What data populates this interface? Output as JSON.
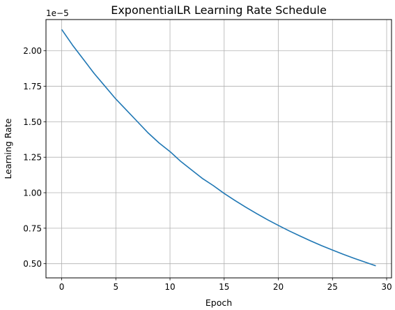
{
  "chart_data": {
    "type": "line",
    "title": "ExponentialLR Learning Rate Schedule",
    "xlabel": "Epoch",
    "ylabel": "Learning Rate",
    "y_offset_label": "1e−5",
    "xlim": [
      -1.45,
      30.45
    ],
    "ylim": [
      0.4,
      2.22
    ],
    "y_scale_multiplier": 1e-05,
    "grid": true,
    "x_ticks": [
      0,
      5,
      10,
      15,
      20,
      25,
      30
    ],
    "x_tick_labels": [
      "0",
      "5",
      "10",
      "15",
      "20",
      "25",
      "30"
    ],
    "y_ticks": [
      0.5,
      0.75,
      1.0,
      1.25,
      1.5,
      1.75,
      2.0
    ],
    "y_tick_labels": [
      "0.50",
      "0.75",
      "1.00",
      "1.25",
      "1.50",
      "1.75",
      "2.00"
    ],
    "series": [
      {
        "color": "#1f77b4",
        "x": [
          0,
          1,
          2,
          3,
          4,
          5,
          6,
          7,
          8,
          9,
          10,
          11,
          12,
          13,
          14,
          15,
          16,
          17,
          18,
          19,
          20,
          21,
          22,
          23,
          24,
          25,
          26,
          27,
          28,
          29
        ],
        "values": [
          2.15,
          2.04,
          1.94,
          1.84,
          1.75,
          1.66,
          1.58,
          1.5,
          1.42,
          1.35,
          1.29,
          1.22,
          1.16,
          1.1,
          1.05,
          0.995,
          0.945,
          0.898,
          0.853,
          0.81,
          0.77,
          0.731,
          0.695,
          0.66,
          0.627,
          0.596,
          0.566,
          0.538,
          0.511,
          0.485
        ]
      }
    ]
  }
}
